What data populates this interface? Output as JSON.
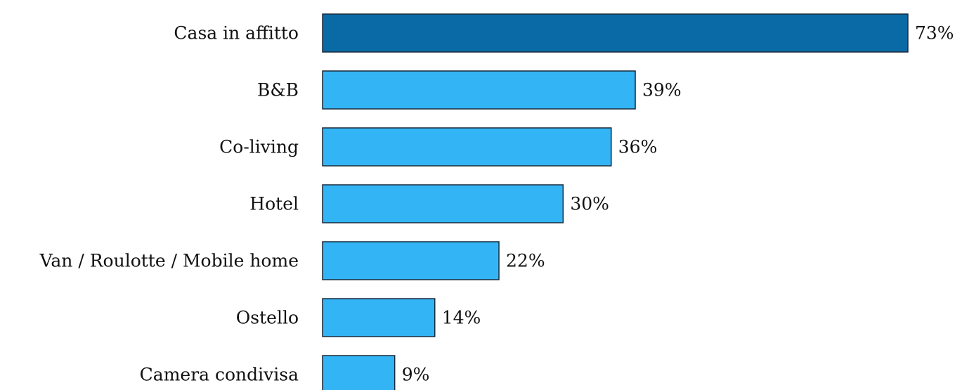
{
  "chart_data": {
    "type": "bar",
    "orientation": "horizontal",
    "categories": [
      "Casa in affitto",
      "B&B",
      "Co-living",
      "Hotel",
      "Van / Roulotte / Mobile home",
      "Ostello",
      "Camera condivisa"
    ],
    "values": [
      73,
      39,
      36,
      30,
      22,
      14,
      9
    ],
    "value_labels": [
      "73%",
      "39%",
      "36%",
      "30%",
      "22%",
      "14%",
      "9%"
    ],
    "unit": "%",
    "xlim": [
      0,
      73
    ],
    "grid": false,
    "legend": "none",
    "colors": {
      "highlight": "#0a6aa6",
      "default": "#33b5f5"
    },
    "highlight_index": 0
  }
}
